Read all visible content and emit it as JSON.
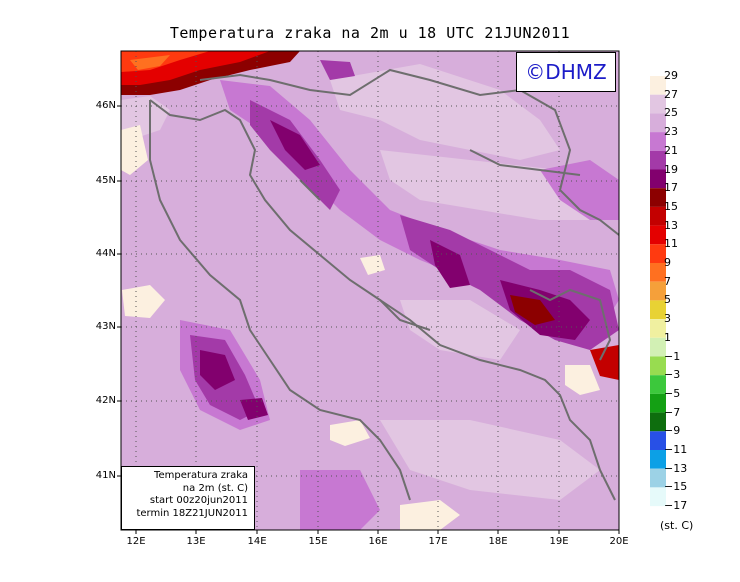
{
  "title": "Temperatura zraka na 2m u 18 UTC 21JUN2011",
  "logo": "©DHMZ",
  "info_box": {
    "line1": "Temperatura zraka",
    "line2": "na 2m (st. C)",
    "line3": "start 00z20jun2011",
    "line4": "termin 18Z21JUN2011"
  },
  "lat_labels": [
    "46N",
    "45N",
    "44N",
    "43N",
    "42N",
    "41N"
  ],
  "lon_labels": [
    "12E",
    "13E",
    "14E",
    "15E",
    "16E",
    "17E",
    "18E",
    "19E",
    "20E"
  ],
  "colorbar": {
    "unit": "(st. C)",
    "labels": [
      "29",
      "27",
      "25",
      "23",
      "21",
      "19",
      "17",
      "15",
      "13",
      "11",
      "9",
      "7",
      "5",
      "3",
      "1",
      "−1",
      "−3",
      "−5",
      "−7",
      "−9",
      "−11",
      "−13",
      "−15",
      "−17"
    ],
    "colors": [
      "#fcf0e0",
      "#e2c6e2",
      "#d7aedb",
      "#c778d2",
      "#a33aa8",
      "#82006e",
      "#8c0000",
      "#c30000",
      "#e40000",
      "#ff3a10",
      "#ff7020",
      "#f5a03a",
      "#e8d234",
      "#f0f0a0",
      "#d2f0b4",
      "#98dc50",
      "#3cc83c",
      "#14a014",
      "#0e6e0e",
      "#2850e6",
      "#0ca0e6",
      "#9cd2e6",
      "#e6fafa"
    ]
  },
  "colors": {
    "background_field": "#d7aedb",
    "coast": "#6e6e6e",
    "logo_text": "#1c1cc8"
  }
}
